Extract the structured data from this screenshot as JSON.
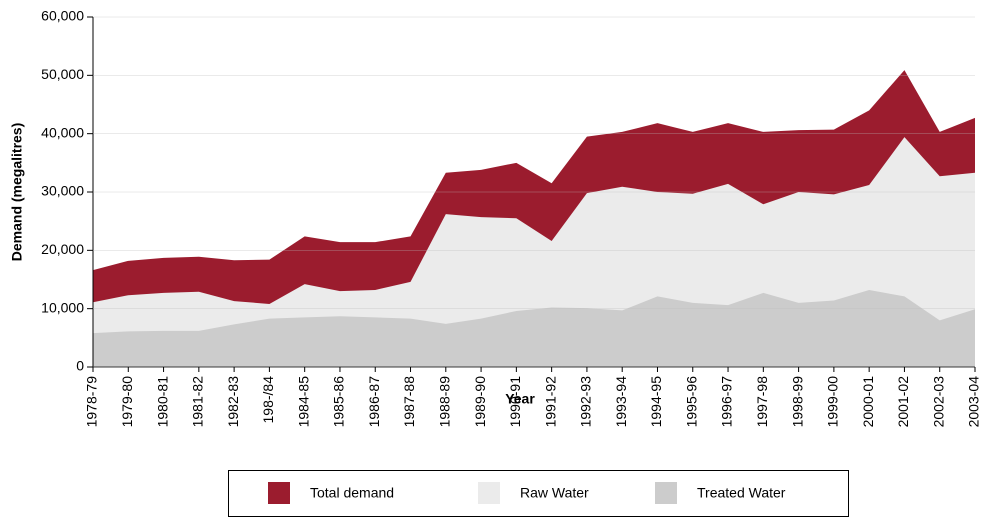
{
  "chart_data": {
    "type": "area",
    "x_label": "Year",
    "y_label": "Demand (megalitres)",
    "categories": [
      "1978-79",
      "1979-80",
      "1980-81",
      "1981-82",
      "1982-83",
      "198-/84",
      "1984-85",
      "1985-86",
      "1986-87",
      "1987-88",
      "1988-89",
      "1989-90",
      "1990-91",
      "1991-92",
      "1992-93",
      "1993-94",
      "1994-95",
      "1995-96",
      "1996-97",
      "1997-98",
      "1998-99",
      "1999-00",
      "2000-01",
      "2001-02",
      "2002-03",
      "2003-04"
    ],
    "series": [
      {
        "name": "Total demand",
        "color": "#9b1c2e",
        "values": [
          16600,
          18200,
          18700,
          18900,
          18300,
          18400,
          22400,
          21400,
          21400,
          22400,
          33300,
          33800,
          35000,
          31500,
          39500,
          40300,
          41800,
          40300,
          41800,
          40300,
          40600,
          40700,
          44000,
          50900,
          40300,
          42700
        ]
      },
      {
        "name": "Raw Water",
        "color": "#ebebeb",
        "values": [
          11100,
          12300,
          12700,
          12900,
          11300,
          10800,
          14200,
          13000,
          13200,
          14600,
          26200,
          25700,
          25500,
          21600,
          29800,
          30900,
          30000,
          29700,
          31400,
          27900,
          30000,
          29600,
          31200,
          39400,
          32700,
          33300
        ]
      },
      {
        "name": "Treated Water",
        "color": "#cccccc",
        "values": [
          5800,
          6100,
          6200,
          6200,
          7300,
          8300,
          8500,
          8700,
          8500,
          8300,
          7400,
          8300,
          9600,
          10200,
          10100,
          9700,
          12100,
          11000,
          10600,
          12700,
          11000,
          11400,
          13200,
          12100,
          8000,
          9900
        ]
      }
    ],
    "ylim": [
      0,
      60000
    ],
    "yticks": [
      0,
      {
        "value": 10000,
        "label": "10,000"
      },
      {
        "value": 20000,
        "label": "20,000"
      },
      {
        "value": 30000,
        "label": "30,000"
      },
      {
        "value": 40000,
        "label": "40,000"
      },
      {
        "value": 50000,
        "label": "50,000"
      },
      {
        "value": 60000,
        "label": "60,000"
      }
    ],
    "legend": "bottom"
  }
}
